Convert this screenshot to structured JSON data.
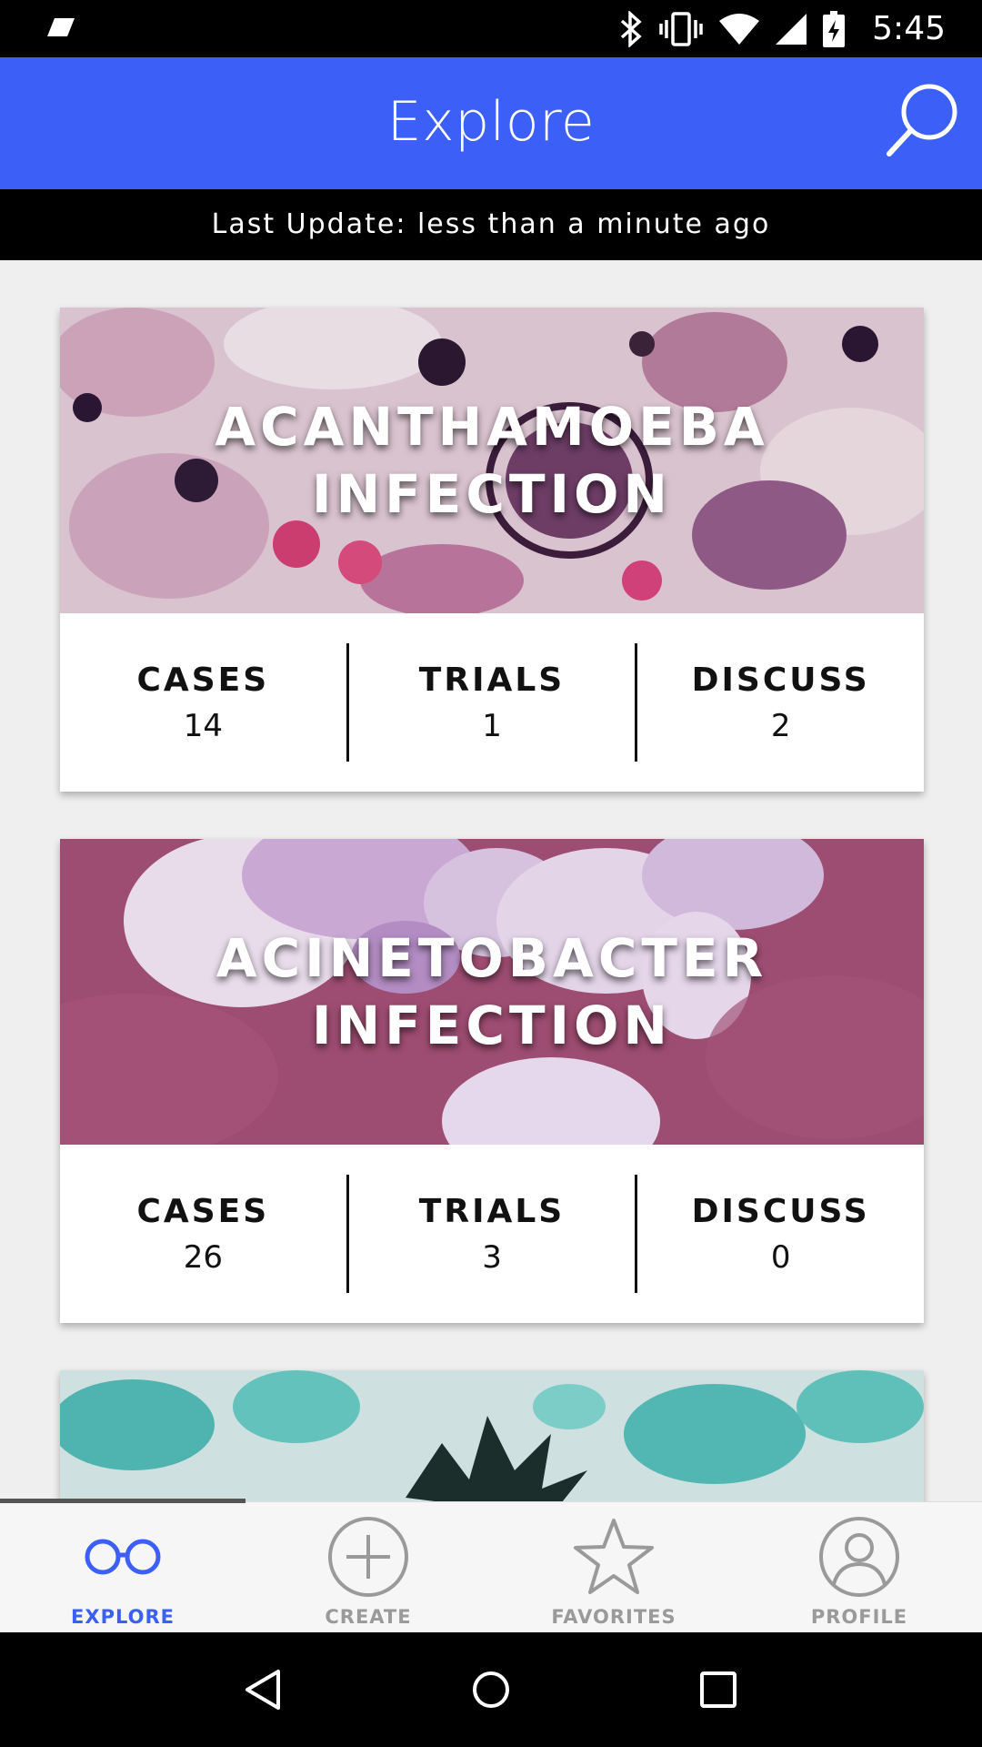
{
  "status_bar": {
    "time": "5:45",
    "icons": [
      "notification-icon",
      "bluetooth-icon",
      "vibrate-icon",
      "wifi-icon",
      "signal-icon",
      "battery-charging-icon"
    ]
  },
  "app_bar": {
    "title": "Explore",
    "search_icon": "search-icon"
  },
  "update_strip": {
    "text": "Last Update: less than a minute ago"
  },
  "cards": [
    {
      "title": "ACANTHAMOEBA INFECTION",
      "stats": [
        {
          "label": "CASES",
          "value": "14"
        },
        {
          "label": "TRIALS",
          "value": "1"
        },
        {
          "label": "DISCUSS",
          "value": "2"
        }
      ]
    },
    {
      "title": "ACINETOBACTER INFECTION",
      "stats": [
        {
          "label": "CASES",
          "value": "26"
        },
        {
          "label": "TRIALS",
          "value": "3"
        },
        {
          "label": "DISCUSS",
          "value": "0"
        }
      ]
    },
    {
      "title": "",
      "stats": []
    }
  ],
  "bottom_nav": {
    "items": [
      {
        "label": "EXPLORE",
        "icon": "glasses-icon",
        "active": true
      },
      {
        "label": "CREATE",
        "icon": "plus-circle-icon",
        "active": false
      },
      {
        "label": "FAVORITES",
        "icon": "star-icon",
        "active": false
      },
      {
        "label": "PROFILE",
        "icon": "user-circle-icon",
        "active": false
      }
    ]
  },
  "system_nav": {
    "icons": [
      "back-icon",
      "home-icon",
      "recents-icon"
    ]
  },
  "colors": {
    "primary": "#3b5ff7",
    "inactive_nav": "#9a9a9a",
    "background": "#efefef"
  }
}
